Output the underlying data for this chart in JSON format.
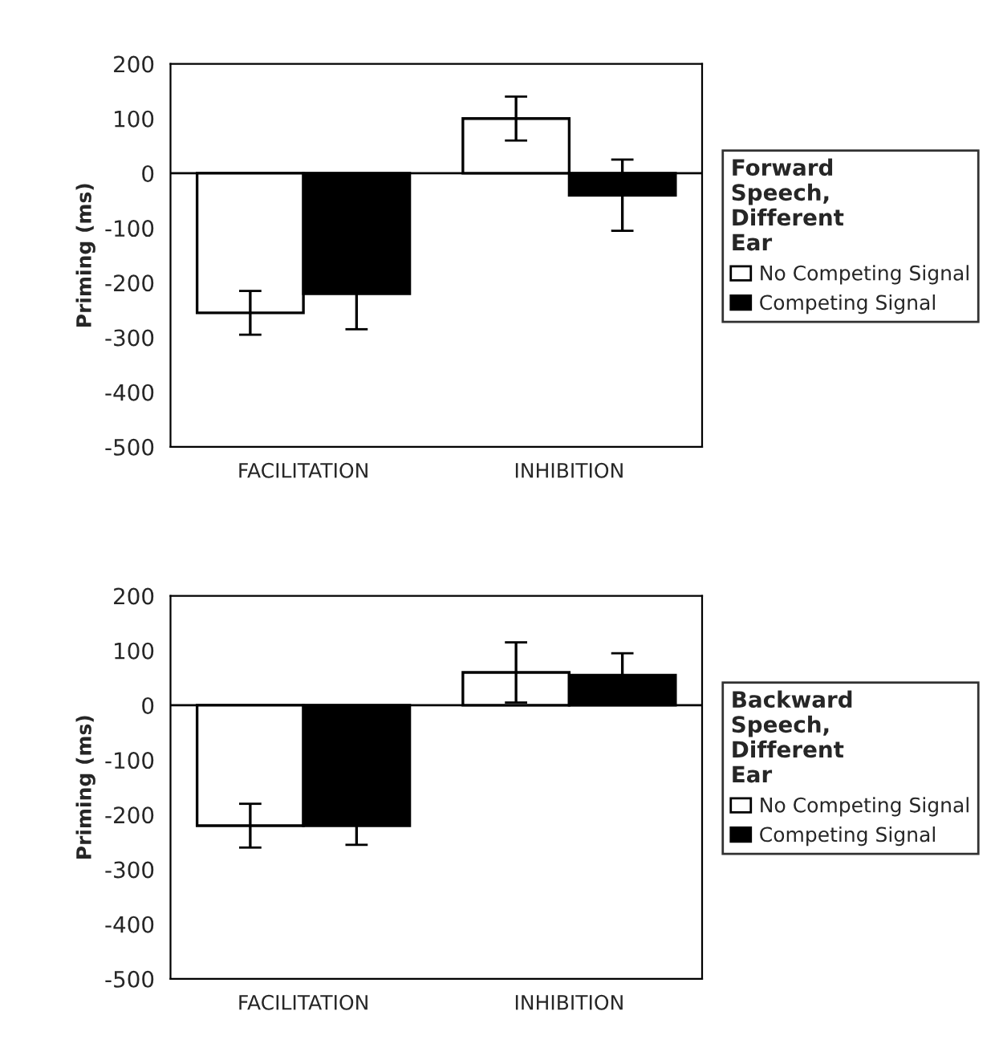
{
  "chart_data": [
    {
      "type": "bar",
      "legend_title": "Forward Speech, Different Ear",
      "ylabel": "Priming (ms)",
      "categories": [
        "FACILITATION",
        "INHIBITION"
      ],
      "series": [
        {
          "name": "No Competing Signal",
          "color": "#ffffff",
          "values": [
            -255,
            100
          ],
          "errors": [
            40,
            40
          ]
        },
        {
          "name": "Competing Signal",
          "color": "#000000",
          "values": [
            -220,
            -40
          ],
          "errors": [
            65,
            65
          ]
        }
      ],
      "ylim": [
        -500,
        200
      ],
      "yticks": [
        -500,
        -400,
        -300,
        -200,
        -100,
        0,
        100,
        200
      ],
      "legend": "right",
      "ref_lines": [
        {
          "axis": "y",
          "value": 0
        }
      ]
    },
    {
      "type": "bar",
      "legend_title": "Backward Speech, Different Ear",
      "ylabel": "Priming (ms)",
      "categories": [
        "FACILITATION",
        "INHIBITION"
      ],
      "series": [
        {
          "name": "No Competing Signal",
          "color": "#ffffff",
          "values": [
            -220,
            60
          ],
          "errors": [
            40,
            55
          ]
        },
        {
          "name": "Competing Signal",
          "color": "#000000",
          "values": [
            -220,
            55
          ],
          "errors": [
            35,
            40
          ]
        }
      ],
      "ylim": [
        -500,
        200
      ],
      "yticks": [
        -500,
        -400,
        -300,
        -200,
        -100,
        0,
        100,
        200
      ],
      "legend": "right",
      "ref_lines": [
        {
          "axis": "y",
          "value": 0
        }
      ]
    }
  ]
}
